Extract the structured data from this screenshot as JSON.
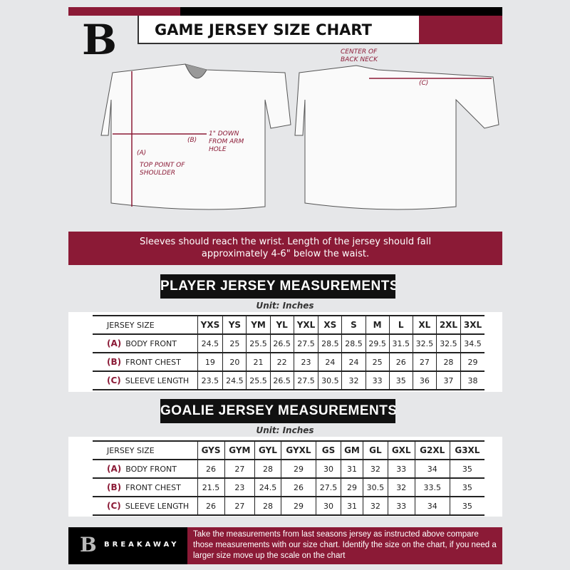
{
  "header": {
    "title": "GAME JERSEY SIZE CHART",
    "logo": "B",
    "colors": {
      "brand": "#8b1a36",
      "black": "#000000",
      "background": "#e6e7e9"
    }
  },
  "diagram": {
    "front_annotations": {
      "a_label": "(A)",
      "a_text": "TOP POINT OF SHOULDER",
      "b_label": "(B)",
      "b_text": "1\" DOWN FROM ARM HOLE"
    },
    "back_annotations": {
      "c_label": "(C)",
      "c_text": "CENTER OF BACK NECK"
    }
  },
  "banner": {
    "text": "Sleeves should reach the wrist. Length of the jersey should fall approximately 4-6\" below the waist."
  },
  "player": {
    "heading": "PLAYER JERSEY MEASUREMENTS",
    "unit": "Unit: Inches",
    "size_header": "JERSEY SIZE",
    "sizes": [
      "YXS",
      "YS",
      "YM",
      "YL",
      "YXL",
      "XS",
      "S",
      "M",
      "L",
      "XL",
      "2XL",
      "3XL"
    ],
    "rows": [
      {
        "letter": "(A)",
        "label": "BODY FRONT",
        "values": [
          "24.5",
          "25",
          "25.5",
          "26.5",
          "27.5",
          "28.5",
          "28.5",
          "29.5",
          "31.5",
          "32.5",
          "32.5",
          "34.5"
        ]
      },
      {
        "letter": "(B)",
        "label": "FRONT CHEST",
        "values": [
          "19",
          "20",
          "21",
          "22",
          "23",
          "24",
          "24",
          "25",
          "26",
          "27",
          "28",
          "29"
        ]
      },
      {
        "letter": "(C)",
        "label": "SLEEVE LENGTH",
        "values": [
          "23.5",
          "24.5",
          "25.5",
          "26.5",
          "27.5",
          "30.5",
          "32",
          "33",
          "35",
          "36",
          "37",
          "38"
        ]
      }
    ]
  },
  "goalie": {
    "heading": "GOALIE JERSEY MEASUREMENTS",
    "unit": "Unit: Inches",
    "size_header": "JERSEY SIZE",
    "sizes": [
      "GYS",
      "GYM",
      "GYL",
      "GYXL",
      "GS",
      "GM",
      "GL",
      "GXL",
      "G2XL",
      "G3XL"
    ],
    "rows": [
      {
        "letter": "(A)",
        "label": "BODY FRONT",
        "values": [
          "26",
          "27",
          "28",
          "29",
          "30",
          "31",
          "32",
          "33",
          "34",
          "35"
        ]
      },
      {
        "letter": "(B)",
        "label": "FRONT CHEST",
        "values": [
          "21.5",
          "23",
          "24.5",
          "26",
          "27.5",
          "29",
          "30.5",
          "32",
          "33.5",
          "35"
        ]
      },
      {
        "letter": "(C)",
        "label": "SLEEVE LENGTH",
        "values": [
          "26",
          "27",
          "28",
          "29",
          "30",
          "31",
          "32",
          "33",
          "34",
          "35"
        ]
      }
    ]
  },
  "footer": {
    "brand": "BREAKAWAY",
    "text": "Take the measurements from last seasons jersey as instructed above compare those measurements  with our size chart. Identify the size on the chart, if you need a larger size move up the scale on the chart"
  }
}
